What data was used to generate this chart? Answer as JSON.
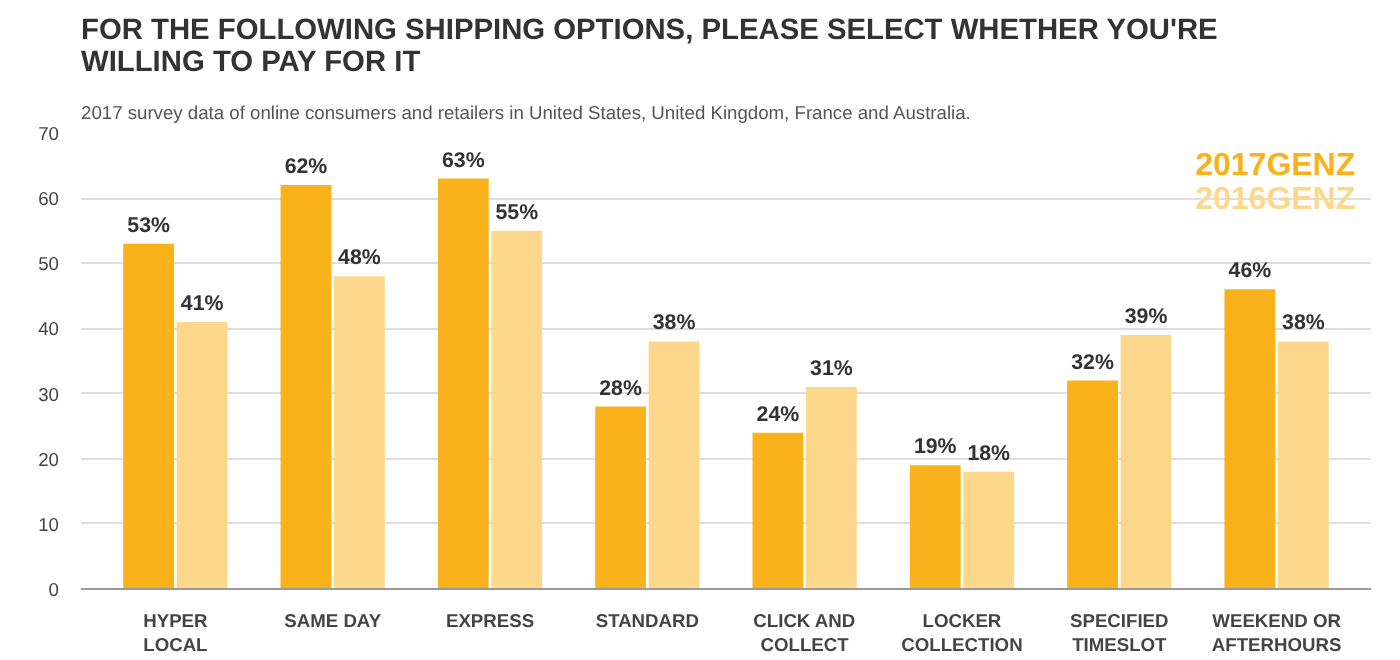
{
  "chart_data": {
    "type": "bar",
    "title": "FOR THE FOLLOWING SHIPPING OPTIONS, PLEASE SELECT WHETHER YOU'RE\nWILLING TO PAY FOR IT",
    "subtitle": "2017 survey data of online consumers and retailers in United States, United Kingdom, France and Australia.",
    "categories": [
      "HYPER\nLOCAL",
      "SAME DAY",
      "EXPRESS",
      "STANDARD",
      "CLICK AND\nCOLLECT",
      "LOCKER\nCOLLECTION",
      "SPECIFIED\nTIMESLOT",
      "WEEKEND OR\nAFTERHOURS"
    ],
    "series": [
      {
        "name": "2017GENZ",
        "color": "#f9b21b",
        "values": [
          53,
          62,
          63,
          28,
          24,
          19,
          32,
          46
        ],
        "value_labels": [
          "53%",
          "62%",
          "63%",
          "28%",
          "24%",
          "19%",
          "32%",
          "46%"
        ]
      },
      {
        "name": "2016GENZ",
        "color": "#fdd88c",
        "values": [
          41,
          48,
          55,
          38,
          31,
          18,
          39,
          38
        ],
        "value_labels": [
          "41%",
          "48%",
          "55%",
          "38%",
          "31%",
          "18%",
          "39%",
          "38%"
        ]
      }
    ],
    "ylim": [
      0,
      70
    ],
    "yticks": [
      0,
      10,
      20,
      30,
      40,
      50,
      60,
      70
    ],
    "grid": "y",
    "legend": "top right"
  }
}
